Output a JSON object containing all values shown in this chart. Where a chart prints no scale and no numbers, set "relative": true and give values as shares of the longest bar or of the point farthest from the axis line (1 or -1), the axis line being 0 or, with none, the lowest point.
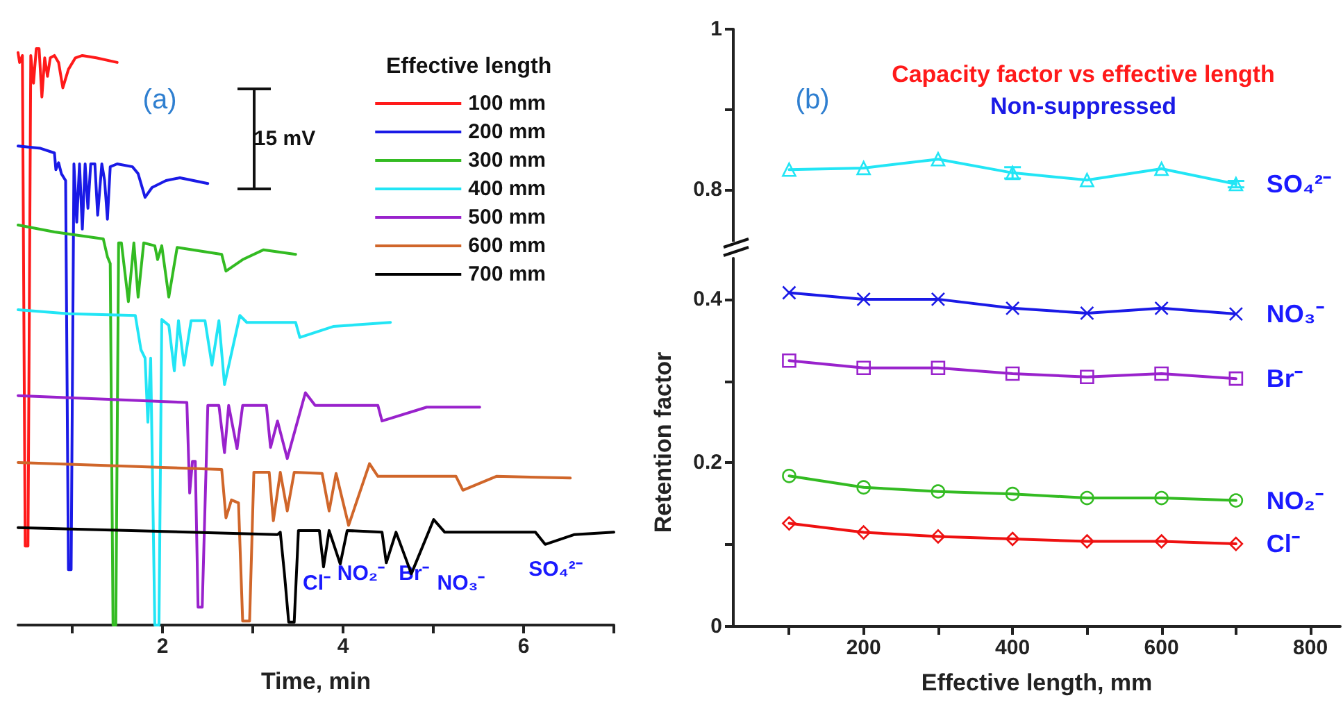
{
  "chart_data": [
    {
      "type": "line",
      "relative": true,
      "xlabel": "Time, min",
      "legend_title": "Effective length",
      "legend": "top right",
      "marker": "none",
      "xlim": [
        0.4,
        7
      ],
      "xticks": [
        {
          "value": 1,
          "label": null
        },
        2,
        {
          "value": 3,
          "label": null
        },
        4,
        {
          "value": 5,
          "label": null
        },
        6,
        {
          "value": 7,
          "label": null
        }
      ],
      "annotations": [
        "(a)",
        "15 mV",
        "Cl⁻",
        "NO₂⁻",
        "Br⁻",
        "NO₃⁻",
        "SO₄²⁻"
      ],
      "series": [
        {
          "name": "100 mm",
          "color": "#ff1a1a",
          "x": [
            0.4,
            0.417,
            0.448,
            0.479,
            0.51,
            0.541,
            0.571,
            0.602,
            0.633,
            0.664,
            0.695,
            0.726,
            0.757,
            0.803,
            0.849,
            0.896,
            0.958,
            1.035,
            1.112,
            1.266,
            1.498
          ],
          "values": [
            0.993,
            0.976,
            0.988,
            0.137,
            0.137,
            0.988,
            0.94,
            1.0,
            1.0,
            0.916,
            0.984,
            0.952,
            0.984,
            0.988,
            0.976,
            0.932,
            0.964,
            0.984,
            0.988,
            0.984,
            0.976
          ]
        },
        {
          "name": "200 mm",
          "color": "#1a1ae6",
          "x": [
            0.4,
            0.649,
            0.803,
            0.819,
            0.849,
            0.88,
            0.927,
            0.958,
            0.988,
            1.019,
            1.05,
            1.081,
            1.112,
            1.143,
            1.174,
            1.205,
            1.251,
            1.282,
            1.328,
            1.359,
            1.39,
            1.421,
            1.498,
            1.668,
            1.73,
            1.807,
            1.884,
            2.039,
            2.193,
            2.502
          ],
          "values": [
            0.831,
            0.827,
            0.819,
            0.79,
            0.802,
            0.783,
            0.771,
            0.096,
            0.096,
            0.8,
            0.699,
            0.8,
            0.687,
            0.8,
            0.723,
            0.8,
            0.8,
            0.711,
            0.8,
            0.771,
            0.704,
            0.795,
            0.8,
            0.795,
            0.783,
            0.742,
            0.759,
            0.771,
            0.776,
            0.766
          ]
        },
        {
          "name": "300 mm",
          "color": "#33bb22",
          "x": [
            0.4,
            0.803,
            1.344,
            1.39,
            1.421,
            1.452,
            1.483,
            1.514,
            1.545,
            1.622,
            1.683,
            1.73,
            1.792,
            1.915,
            1.946,
            1.992,
            2.07,
            2.162,
            2.656,
            2.703,
            2.888,
            3.12,
            3.475
          ],
          "values": [
            0.694,
            0.682,
            0.67,
            0.639,
            0.627,
            0.0,
            0.0,
            0.663,
            0.663,
            0.561,
            0.663,
            0.569,
            0.663,
            0.658,
            0.634,
            0.658,
            0.569,
            0.655,
            0.643,
            0.614,
            0.634,
            0.651,
            0.643
          ]
        },
        {
          "name": "400 mm",
          "color": "#22e5f5",
          "x": [
            0.4,
            0.958,
            1.699,
            1.761,
            1.807,
            1.838,
            1.869,
            1.915,
            1.961,
            1.992,
            2.07,
            2.131,
            2.177,
            2.239,
            2.317,
            2.471,
            2.548,
            2.625,
            2.687,
            2.857,
            2.934,
            3.475,
            3.521,
            3.892,
            4.525
          ],
          "values": [
            0.547,
            0.54,
            0.537,
            0.478,
            0.463,
            0.352,
            0.463,
            0.0,
            0.0,
            0.53,
            0.52,
            0.441,
            0.528,
            0.451,
            0.528,
            0.528,
            0.451,
            0.528,
            0.417,
            0.537,
            0.525,
            0.525,
            0.499,
            0.518,
            0.525
          ]
        },
        {
          "name": "500 mm",
          "color": "#9922cc",
          "x": [
            0.4,
            2.27,
            2.301,
            2.332,
            2.363,
            2.394,
            2.44,
            2.502,
            2.625,
            2.687,
            2.733,
            2.826,
            2.888,
            3.151,
            3.197,
            3.274,
            3.382,
            3.583,
            3.691,
            4.386,
            4.432,
            4.927,
            5.514
          ],
          "values": [
            0.398,
            0.386,
            0.229,
            0.284,
            0.284,
            0.031,
            0.031,
            0.381,
            0.381,
            0.299,
            0.381,
            0.306,
            0.381,
            0.381,
            0.308,
            0.354,
            0.289,
            0.403,
            0.381,
            0.381,
            0.354,
            0.378,
            0.378
          ]
        },
        {
          "name": "600 mm",
          "color": "#d0662a",
          "x": [
            0.4,
            2.656,
            2.703,
            2.764,
            2.842,
            2.888,
            2.965,
            3.012,
            3.182,
            3.228,
            3.305,
            3.382,
            3.459,
            3.768,
            3.846,
            3.923,
            4.062,
            4.293,
            4.386,
            5.251,
            5.328,
            5.699,
            6.517
          ],
          "values": [
            0.282,
            0.27,
            0.186,
            0.217,
            0.212,
            0.007,
            0.007,
            0.265,
            0.265,
            0.181,
            0.265,
            0.198,
            0.265,
            0.263,
            0.198,
            0.263,
            0.173,
            0.28,
            0.258,
            0.258,
            0.234,
            0.258,
            0.255
          ]
        },
        {
          "name": "700 mm",
          "color": "#000000",
          "x": [
            0.4,
            3.274,
            3.305,
            3.351,
            3.398,
            3.459,
            3.506,
            3.738,
            3.784,
            3.846,
            3.969,
            4.046,
            4.432,
            4.479,
            4.587,
            4.757,
            5.004,
            5.127,
            6.131,
            6.239,
            6.564,
            7.0
          ],
          "values": [
            0.169,
            0.157,
            0.161,
            0.089,
            0.005,
            0.005,
            0.164,
            0.164,
            0.101,
            0.164,
            0.106,
            0.164,
            0.161,
            0.108,
            0.161,
            0.089,
            0.183,
            0.161,
            0.161,
            0.14,
            0.157,
            0.161
          ]
        }
      ]
    },
    {
      "type": "line",
      "title": "Capacity factor vs effective length",
      "subtitle": "Non-suppressed",
      "tick_labels": "y",
      "xlim": [
        25,
        840
      ],
      "ylim": [
        0.73,
        1
      ],
      "yticks": [
        0.8,
        {
          "value": 0.9,
          "label": null
        },
        1
      ],
      "annotations": [
        "(b)"
      ],
      "x": [
        100,
        200,
        300,
        400,
        500,
        600,
        700
      ],
      "series": [
        {
          "name": "SO₄²⁻",
          "color": "#22e5f5",
          "marker": "triangle",
          "values": [
            0.825,
            0.827,
            0.838,
            0.821,
            0.812,
            0.826,
            0.807
          ],
          "errors": [
            null,
            null,
            null,
            0.007,
            null,
            null,
            0.004
          ]
        }
      ]
    },
    {
      "type": "line",
      "xlabel": "Effective length, mm",
      "ylabel": "Retention factor",
      "xlim": [
        25,
        840
      ],
      "xticks": [
        {
          "value": 100,
          "label": null
        },
        200,
        {
          "value": 300,
          "label": null
        },
        400,
        {
          "value": 500,
          "label": null
        },
        600,
        {
          "value": 700,
          "label": null
        },
        800
      ],
      "ylim": [
        0,
        0.45
      ],
      "yticks": [
        0,
        {
          "value": 0.1,
          "label": null
        },
        0.2,
        {
          "value": 0.3,
          "label": null
        },
        0.4
      ],
      "x": [
        100,
        200,
        300,
        400,
        500,
        600,
        700
      ],
      "series": [
        {
          "name": "NO₃⁻",
          "color": "#1a1ae6",
          "marker": "cross",
          "values": [
            0.408,
            0.4,
            0.4,
            0.389,
            0.383,
            0.389,
            0.382
          ]
        },
        {
          "name": "Br⁻",
          "color": "#9922cc",
          "marker": "square",
          "values": [
            0.325,
            0.316,
            0.316,
            0.309,
            0.305,
            0.309,
            0.303
          ]
        },
        {
          "name": "NO₂⁻",
          "color": "#33bb22",
          "marker": "circle",
          "values": [
            0.184,
            0.17,
            0.165,
            0.162,
            0.157,
            0.157,
            0.154
          ]
        },
        {
          "name": "Cl⁻",
          "color": "#ee1111",
          "marker": "diamond",
          "values": [
            0.126,
            0.115,
            0.11,
            0.107,
            0.104,
            0.104,
            0.101
          ]
        }
      ]
    }
  ]
}
